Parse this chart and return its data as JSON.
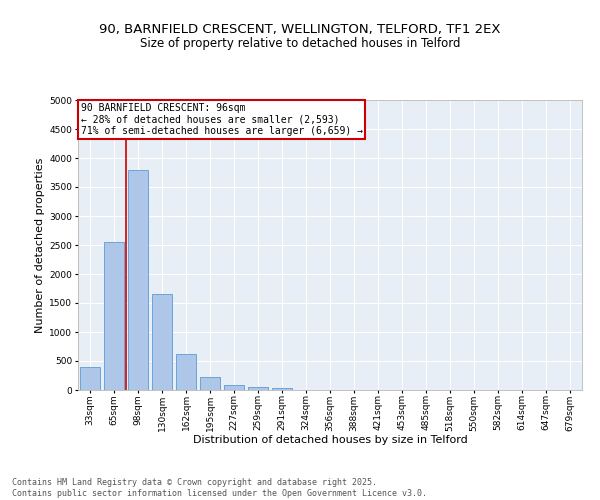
{
  "title_line1": "90, BARNFIELD CRESCENT, WELLINGTON, TELFORD, TF1 2EX",
  "title_line2": "Size of property relative to detached houses in Telford",
  "xlabel": "Distribution of detached houses by size in Telford",
  "ylabel": "Number of detached properties",
  "categories": [
    "33sqm",
    "65sqm",
    "98sqm",
    "130sqm",
    "162sqm",
    "195sqm",
    "227sqm",
    "259sqm",
    "291sqm",
    "324sqm",
    "356sqm",
    "388sqm",
    "421sqm",
    "453sqm",
    "485sqm",
    "518sqm",
    "550sqm",
    "582sqm",
    "614sqm",
    "647sqm",
    "679sqm"
  ],
  "values": [
    390,
    2560,
    3800,
    1650,
    620,
    230,
    90,
    45,
    35,
    0,
    0,
    0,
    0,
    0,
    0,
    0,
    0,
    0,
    0,
    0,
    0
  ],
  "bar_color": "#aec6e8",
  "bar_edge_color": "#5b9bd5",
  "vline_color": "#cc0000",
  "annotation_text": "90 BARNFIELD CRESCENT: 96sqm\n← 28% of detached houses are smaller (2,593)\n71% of semi-detached houses are larger (6,659) →",
  "annotation_box_color": "#cc0000",
  "annotation_text_color": "#000000",
  "ylim": [
    0,
    5000
  ],
  "yticks": [
    0,
    500,
    1000,
    1500,
    2000,
    2500,
    3000,
    3500,
    4000,
    4500,
    5000
  ],
  "background_color": "#e8eef5",
  "grid_color": "#ffffff",
  "footer_text": "Contains HM Land Registry data © Crown copyright and database right 2025.\nContains public sector information licensed under the Open Government Licence v3.0.",
  "title_fontsize": 9.5,
  "subtitle_fontsize": 8.5,
  "axis_label_fontsize": 8,
  "tick_fontsize": 6.5,
  "annotation_fontsize": 7,
  "footer_fontsize": 6
}
